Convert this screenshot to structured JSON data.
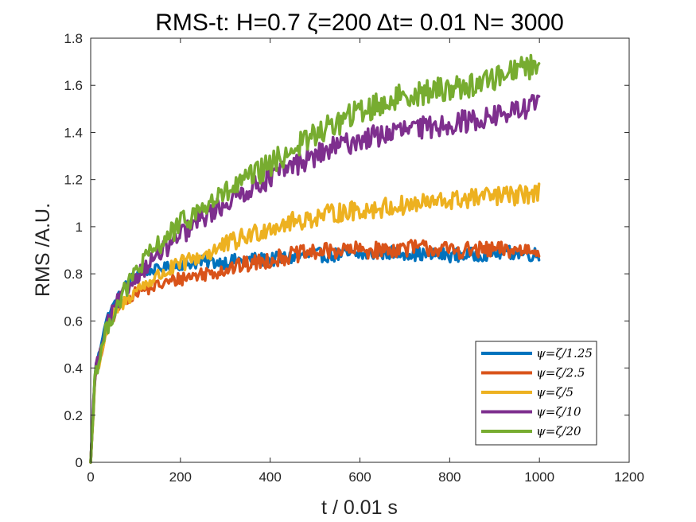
{
  "chart_data": {
    "type": "line",
    "title": "RMS-t:  H=0.7 ζ=200 Δt= 0.01 N= 3000",
    "xlabel": "t / 0.01 s",
    "ylabel": "RMS /A.U.",
    "xlim": [
      0,
      1200
    ],
    "ylim": [
      0,
      1.8
    ],
    "xticks": [
      0,
      200,
      400,
      600,
      800,
      1000,
      1200
    ],
    "yticks": [
      0,
      0.2,
      0.4,
      0.6,
      0.8,
      1,
      1.2,
      1.4,
      1.6,
      1.8
    ],
    "xtick_labels": [
      "0",
      "200",
      "400",
      "600",
      "800",
      "1000",
      "1200"
    ],
    "ytick_labels": [
      "0",
      "0.2",
      "0.4",
      "0.6",
      "0.8",
      "1",
      "1.2",
      "1.4",
      "1.6",
      "1.8"
    ],
    "grid": false,
    "legend_position": "bottom-right",
    "x": [
      0,
      10,
      20,
      30,
      40,
      60,
      80,
      100,
      150,
      200,
      250,
      300,
      350,
      400,
      450,
      500,
      550,
      600,
      650,
      700,
      750,
      800,
      850,
      900,
      950,
      1000
    ],
    "series": [
      {
        "name": "ψ=ζ/1.25",
        "color": "#0072BD",
        "values": [
          0,
          0.4,
          0.47,
          0.57,
          0.63,
          0.7,
          0.76,
          0.8,
          0.82,
          0.84,
          0.85,
          0.85,
          0.86,
          0.86,
          0.87,
          0.88,
          0.88,
          0.88,
          0.89,
          0.89,
          0.88,
          0.88,
          0.88,
          0.89,
          0.89,
          0.88
        ]
      },
      {
        "name": "ψ=ζ/2.5",
        "color": "#D95319",
        "values": [
          0,
          0.37,
          0.42,
          0.52,
          0.58,
          0.65,
          0.69,
          0.72,
          0.75,
          0.78,
          0.8,
          0.82,
          0.84,
          0.86,
          0.88,
          0.89,
          0.9,
          0.9,
          0.9,
          0.91,
          0.91,
          0.9,
          0.9,
          0.9,
          0.9,
          0.91
        ]
      },
      {
        "name": "ψ=ζ/5",
        "color": "#EDB120",
        "values": [
          0,
          0.38,
          0.43,
          0.52,
          0.58,
          0.65,
          0.69,
          0.73,
          0.79,
          0.84,
          0.88,
          0.92,
          0.96,
          1.0,
          1.02,
          1.04,
          1.06,
          1.07,
          1.08,
          1.09,
          1.1,
          1.11,
          1.12,
          1.13,
          1.13,
          1.15
        ]
      },
      {
        "name": "ψ=ζ/10",
        "color": "#7E2F8E",
        "values": [
          0,
          0.4,
          0.45,
          0.54,
          0.6,
          0.68,
          0.73,
          0.79,
          0.88,
          0.96,
          1.04,
          1.1,
          1.16,
          1.21,
          1.26,
          1.3,
          1.34,
          1.37,
          1.39,
          1.41,
          1.42,
          1.44,
          1.45,
          1.47,
          1.49,
          1.53
        ]
      },
      {
        "name": "ψ=ζ/20",
        "color": "#77AC30",
        "values": [
          0,
          0.39,
          0.44,
          0.53,
          0.59,
          0.67,
          0.74,
          0.81,
          0.92,
          1.01,
          1.08,
          1.14,
          1.2,
          1.26,
          1.33,
          1.39,
          1.44,
          1.49,
          1.52,
          1.56,
          1.57,
          1.59,
          1.6,
          1.63,
          1.68,
          1.68
        ]
      }
    ]
  }
}
